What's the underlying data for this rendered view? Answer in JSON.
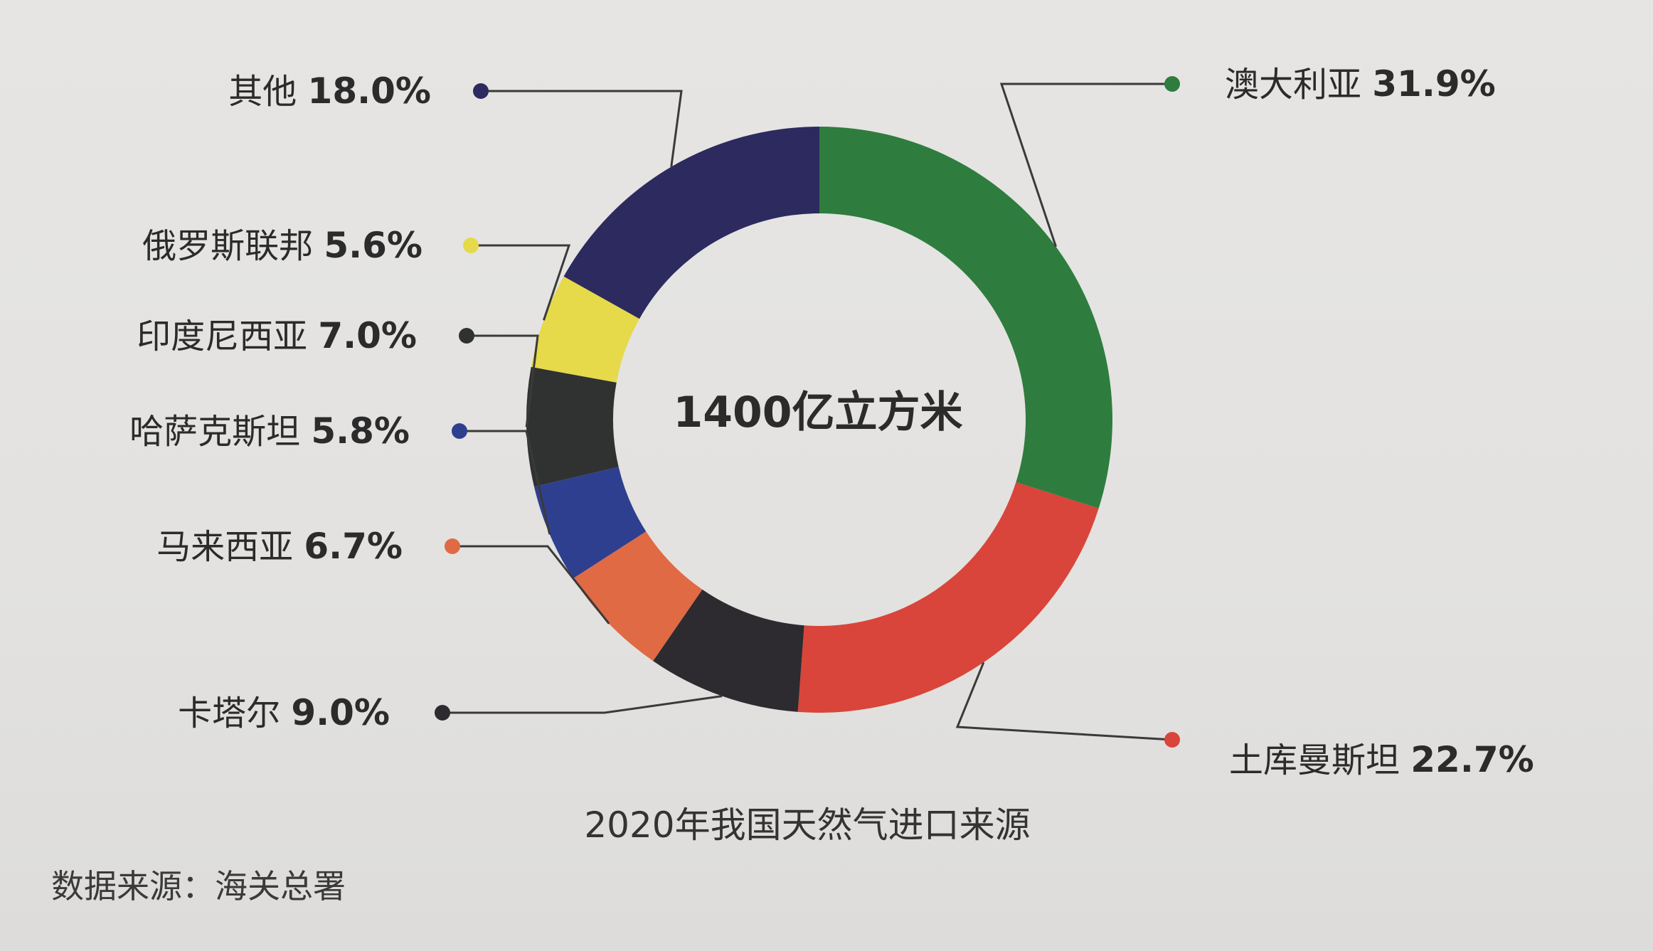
{
  "chart_data": {
    "type": "pie",
    "donut": true,
    "center_label": "1400亿立方米",
    "caption": "2020年我国天然气进口来源",
    "source": "数据来源：海关总署",
    "slices": [
      {
        "label": "澳大利亚",
        "value": 31.9,
        "value_text": "31.9%",
        "color": "#2e7d3e"
      },
      {
        "label": "土库曼斯坦",
        "value": 22.7,
        "value_text": "22.7%",
        "color": "#d9453a"
      },
      {
        "label": "卡塔尔",
        "value": 9.0,
        "value_text": "9.0%",
        "color": "#2d2b2f"
      },
      {
        "label": "马来西亚",
        "value": 6.7,
        "value_text": "6.7%",
        "color": "#e06a44"
      },
      {
        "label": "哈萨克斯坦",
        "value": 5.8,
        "value_text": "5.8%",
        "color": "#2f3f8f"
      },
      {
        "label": "印度尼西亚",
        "value": 7.0,
        "value_text": "7.0%",
        "color": "#2f3230"
      },
      {
        "label": "俄罗斯联邦",
        "value": 5.6,
        "value_text": "5.6%",
        "color": "#e6d94a"
      },
      {
        "label": "其他",
        "value": 18.0,
        "value_text": "18.0%",
        "color": "#2c2a5e"
      }
    ]
  }
}
